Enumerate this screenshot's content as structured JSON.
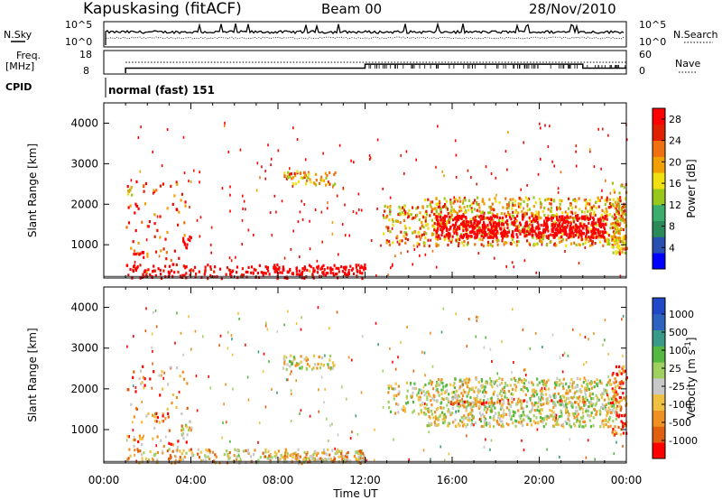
{
  "header": {
    "station": "Kapuskasing (fitACF)",
    "beam": "Beam 00",
    "date": "28/Nov/2010"
  },
  "summary": {
    "nsky_label": "N.Sky",
    "nsearch_label": "N.Search",
    "freq_label_1": "Freq.",
    "freq_label_2": "[MHz]",
    "nave_label": "Nave",
    "cpid_label": "CPID",
    "cpid_program": "normal (fast) 151",
    "nsky_ticks": [
      "10^5",
      "10^0"
    ],
    "nsearch_ticks": [
      "10^5",
      "10^0"
    ],
    "freq_ticks": [
      "18",
      "8"
    ],
    "nave_ticks": [
      "60",
      "0"
    ],
    "freq_steps": [
      {
        "t": 1.0,
        "mhz": 10.5
      },
      {
        "t": 12.0,
        "mhz": 12.5
      },
      {
        "t": 22.0,
        "mhz": 10.5
      }
    ]
  },
  "colors": {
    "power": [
      "#0000ff",
      "#2850b0",
      "#2a8a5a",
      "#3cae6c",
      "#98c81c",
      "#f0e010",
      "#f0a000",
      "#f07010",
      "#e02000",
      "#ff0000"
    ],
    "velocity": [
      "#2048c8",
      "#2d63c0",
      "#3a9a8a",
      "#55b840",
      "#a0d060",
      "#c8c8c8",
      "#f0c040",
      "#f09020",
      "#e06010",
      "#ff0000"
    ]
  },
  "chart_data": [
    {
      "type": "heatmap",
      "name": "power",
      "xlabel": "",
      "ylabel": "Slant Range [km]",
      "xlim": [
        0,
        24
      ],
      "ylim": [
        180,
        4500
      ],
      "yticks": [
        "1000",
        "2000",
        "3000",
        "4000"
      ],
      "colorbar": {
        "label": "Power [dB]",
        "ticks": [
          "4",
          "8",
          "12",
          "16",
          "20",
          "24",
          "28"
        ],
        "range": [
          0,
          30
        ]
      },
      "regions": [
        {
          "t0": 1.0,
          "t1": 12.0,
          "r0": 200,
          "r1": 550,
          "v": 10,
          "density": 0.35
        },
        {
          "t0": 1.0,
          "t1": 3.8,
          "r0": 600,
          "r1": 2600,
          "v": 8,
          "density": 0.08
        },
        {
          "t0": 3.6,
          "t1": 4.0,
          "r0": 950,
          "r1": 1250,
          "v": 14,
          "density": 0.6
        },
        {
          "t0": 1.3,
          "t1": 1.8,
          "r0": 750,
          "r1": 850,
          "v": 16,
          "density": 0.7
        },
        {
          "t0": 1.0,
          "t1": 1.3,
          "r0": 2250,
          "r1": 2500,
          "v": 6,
          "density": 0.5
        },
        {
          "t0": 8.2,
          "t1": 10.6,
          "r0": 2500,
          "r1": 2850,
          "v": 6,
          "density": 0.45
        },
        {
          "t0": 7.5,
          "t1": 12.0,
          "r0": 300,
          "r1": 500,
          "v": 12,
          "density": 0.4
        },
        {
          "t0": 12.8,
          "t1": 14.7,
          "r0": 1000,
          "r1": 2000,
          "v": 6,
          "density": 0.35
        },
        {
          "t0": 14.7,
          "t1": 23.9,
          "r0": 1000,
          "r1": 2200,
          "v": 6,
          "density": 0.45
        },
        {
          "t0": 15.2,
          "t1": 23.0,
          "r0": 1200,
          "r1": 1750,
          "v": 14,
          "density": 0.75
        },
        {
          "t0": 15.6,
          "t1": 22.8,
          "r0": 1300,
          "r1": 1550,
          "v": 20,
          "density": 0.35
        },
        {
          "t0": 23.3,
          "t1": 24.0,
          "r0": 800,
          "r1": 2600,
          "v": 6,
          "density": 0.5
        }
      ],
      "noise": {
        "points": 240,
        "v": 10
      }
    },
    {
      "type": "heatmap",
      "name": "velocity",
      "xlabel": "Time UT",
      "ylabel": "Slant Range [km]",
      "xlim": [
        0,
        24
      ],
      "ylim": [
        180,
        4500
      ],
      "yticks": [
        "1000",
        "2000",
        "3000",
        "4000"
      ],
      "xticks": [
        "00:00",
        "04:00",
        "08:00",
        "12:00",
        "16:00",
        "20:00",
        "00:00"
      ],
      "colorbar": {
        "label": "Velocity [m s^-1]",
        "ticks": [
          "1000",
          "500",
          "100",
          "25",
          "-25",
          "-100",
          "-500",
          "-1000"
        ]
      },
      "regions": [
        {
          "t0": 1.0,
          "t1": 12.0,
          "r0": 200,
          "r1": 550,
          "v": 6,
          "density": 0.35
        },
        {
          "t0": 1.0,
          "t1": 3.8,
          "r0": 600,
          "r1": 2600,
          "v": 7,
          "density": 0.08
        },
        {
          "t0": 3.5,
          "t1": 4.0,
          "r0": 900,
          "r1": 1250,
          "v": 5,
          "density": 0.6
        },
        {
          "t0": 2.3,
          "t1": 2.8,
          "r0": 1200,
          "r1": 1450,
          "v": 8,
          "density": 0.5
        },
        {
          "t0": 1.2,
          "t1": 1.8,
          "r0": 750,
          "r1": 850,
          "v": 7,
          "density": 0.7
        },
        {
          "t0": 8.2,
          "t1": 10.6,
          "r0": 2500,
          "r1": 2850,
          "v": 5,
          "density": 0.45
        },
        {
          "t0": 7.5,
          "t1": 12.0,
          "r0": 250,
          "r1": 500,
          "v": 6,
          "density": 0.45
        },
        {
          "t0": 13.0,
          "t1": 14.8,
          "r0": 1400,
          "r1": 2200,
          "v": 5,
          "density": 0.3
        },
        {
          "t0": 14.8,
          "t1": 23.5,
          "r0": 1100,
          "r1": 2300,
          "v": 5,
          "density": 0.55
        },
        {
          "t0": 15.5,
          "t1": 22.5,
          "r0": 1650,
          "r1": 1750,
          "v": 7,
          "density": 0.45
        },
        {
          "t0": 23.3,
          "t1": 24.0,
          "r0": 900,
          "r1": 2600,
          "v": 8,
          "density": 0.5
        }
      ],
      "noise": {
        "points": 260,
        "v": 6
      }
    }
  ]
}
